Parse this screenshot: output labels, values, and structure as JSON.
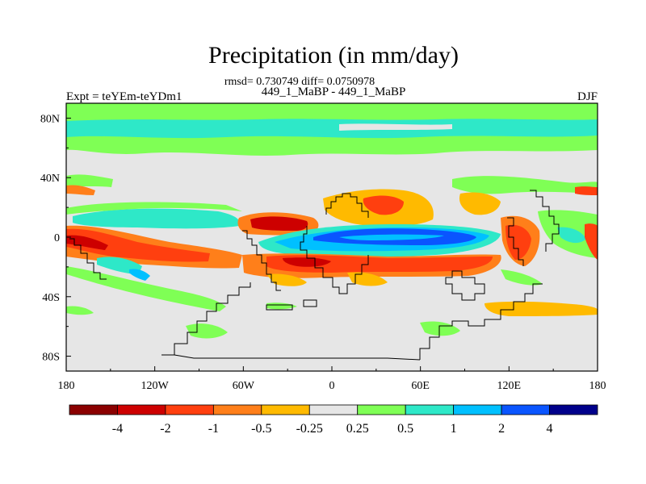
{
  "title": "Precipitation (in mm/day)",
  "stats": "rmsd= 0.730749 diff= 0.0750978",
  "subtitle": "449_1_MaBP - 449_1_MaBP",
  "left_string": "Expt = teYEm-teYDm1",
  "right_string": "DJF",
  "colors": {
    "background": "#e6e6e6",
    "levels": [
      "#8b0000",
      "#cd0000",
      "#ff3f0f",
      "#ff7f1a",
      "#ffba00",
      "#e6e6e6",
      "#7fff55",
      "#2ee8c8",
      "#00c0ff",
      "#0a55ff",
      "#00008b"
    ],
    "coast": "#000000"
  },
  "chart_data": {
    "type": "filled-contour-map",
    "variable": "Precipitation difference (mm/day)",
    "season": "DJF",
    "x_axis": {
      "range": [
        -180,
        180
      ],
      "ticks": [
        -180,
        -120,
        -60,
        0,
        60,
        120,
        180
      ],
      "tick_labels": [
        "180",
        "120W",
        "60W",
        "0",
        "60E",
        "120E",
        "180"
      ]
    },
    "y_axis": {
      "range": [
        -90,
        90
      ],
      "ticks": [
        80,
        40,
        0,
        -40,
        -80
      ],
      "tick_labels": [
        "80N",
        "40N",
        "0",
        "40S",
        "80S"
      ]
    },
    "colorbar_levels": [
      -4,
      -2,
      -1,
      -0.5,
      -0.25,
      0.25,
      0.5,
      1,
      2,
      4
    ],
    "colorbar_labels": [
      "-4",
      "-2",
      "-1",
      "-0.5",
      "-0.25",
      "0.25",
      "0.5",
      "1",
      "2",
      "4"
    ]
  }
}
